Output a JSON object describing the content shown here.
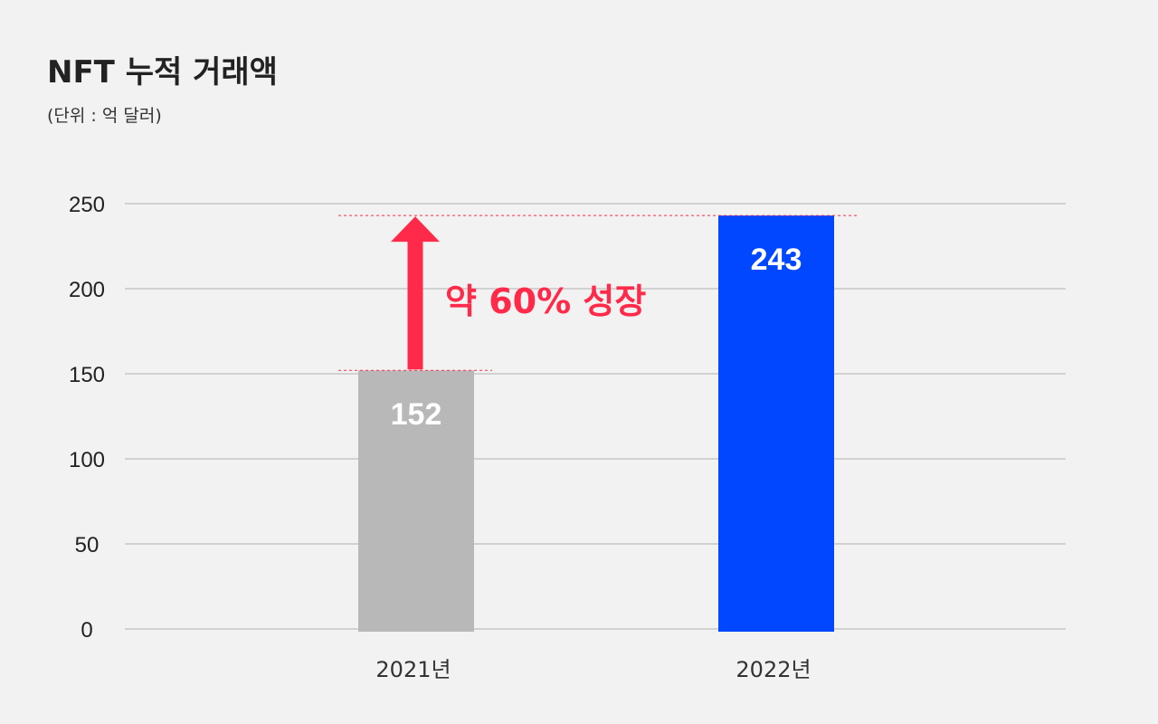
{
  "chart_data": {
    "type": "bar",
    "title": "NFT 누적 거래액",
    "subtitle": "(단위 : 억 달러)",
    "categories": [
      "2021년",
      "2022년"
    ],
    "values": [
      152,
      243
    ],
    "bar_colors": [
      "#b8b8b8",
      "#0047ff"
    ],
    "ylim": [
      0,
      250
    ],
    "yticks": [
      0,
      50,
      100,
      150,
      200,
      250
    ],
    "grid": true,
    "annotation": {
      "text": "약 60% 성장",
      "color": "#ff2a4a",
      "from_value": 152,
      "to_value": 243
    }
  }
}
